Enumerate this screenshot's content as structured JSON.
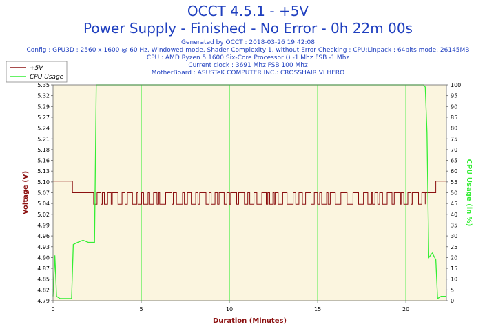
{
  "header": {
    "title": "OCCT 4.5.1 - +5V",
    "subtitle": "Power Supply - Finished - No Error - 0h 22m 00s",
    "info_lines": [
      "Generated by OCCT : 2018-03-26 19:42:08",
      "Config : GPU3D : 2560 x 1600 @ 60 Hz, Windowed mode, Shader Complexity 1, without Error Checking ; CPU:Linpack : 64bits mode, 26145MB",
      "CPU : AMD Ryzen 5 1600 Six-Core Processor () -1 Mhz FSB -1 Mhz",
      "Current clock : 3691 Mhz FSB 100 Mhz",
      "MotherBoard : ASUSTeK COMPUTER INC.: CROSSHAIR VI HERO"
    ]
  },
  "chart_data": {
    "type": "line",
    "title": "OCCT 4.5.1 - +5V",
    "xlabel": "Duration (Minutes)",
    "ylabel": "Voltage (V)",
    "y2label": "CPU Usage (in %)",
    "xlim": [
      0,
      22.3
    ],
    "ylim": [
      4.79,
      5.35
    ],
    "y2lim": [
      0,
      100
    ],
    "x_ticks": [
      0,
      5,
      10,
      15,
      20
    ],
    "y_ticks": [
      "4.79",
      "4.82",
      "4.85",
      "4.87",
      "4.90",
      "4.93",
      "4.96",
      "4.99",
      "5.02",
      "5.04",
      "5.07",
      "5.10",
      "5.13",
      "5.16",
      "5.18",
      "5.21",
      "5.24",
      "5.27",
      "5.29",
      "5.32",
      "5.35"
    ],
    "y2_ticks": [
      0,
      5,
      10,
      15,
      20,
      25,
      30,
      35,
      40,
      45,
      50,
      55,
      60,
      65,
      70,
      75,
      80,
      85,
      90,
      95,
      100
    ],
    "grid": true,
    "legend_position": "top-left",
    "colors": {
      "voltage": "#8b1010",
      "cpu": "#33ee33",
      "plot_bg": "#fbf5df",
      "grid": "#33ee33",
      "title": "#1f3fbf"
    },
    "series": [
      {
        "name": "+5V",
        "axis": "left",
        "description_points": [
          [
            0,
            5.1
          ],
          [
            1.1,
            5.1
          ],
          [
            1.1,
            5.07
          ],
          [
            2.3,
            5.07
          ],
          [
            2.3,
            5.04
          ],
          [
            21.1,
            5.04
          ],
          [
            21.1,
            5.07
          ],
          [
            21.7,
            5.07
          ],
          [
            21.7,
            5.1
          ],
          [
            22.3,
            5.1
          ]
        ],
        "oscillation_range": [
          5.04,
          5.07
        ],
        "oscillation_x": [
          2.3,
          21.1
        ]
      },
      {
        "name": "CPU Usage",
        "axis": "right",
        "points": [
          [
            0,
            2
          ],
          [
            0.1,
            21
          ],
          [
            0.2,
            2
          ],
          [
            0.4,
            1
          ],
          [
            0.9,
            1
          ],
          [
            1.05,
            1
          ],
          [
            1.15,
            26
          ],
          [
            1.4,
            27
          ],
          [
            1.7,
            28
          ],
          [
            2.0,
            27
          ],
          [
            2.35,
            27
          ],
          [
            2.45,
            100
          ],
          [
            21.0,
            100
          ],
          [
            21.1,
            99
          ],
          [
            21.2,
            78
          ],
          [
            21.3,
            20
          ],
          [
            21.5,
            22
          ],
          [
            21.7,
            19
          ],
          [
            21.8,
            1
          ],
          [
            22.0,
            2
          ],
          [
            22.3,
            2
          ]
        ]
      }
    ]
  }
}
